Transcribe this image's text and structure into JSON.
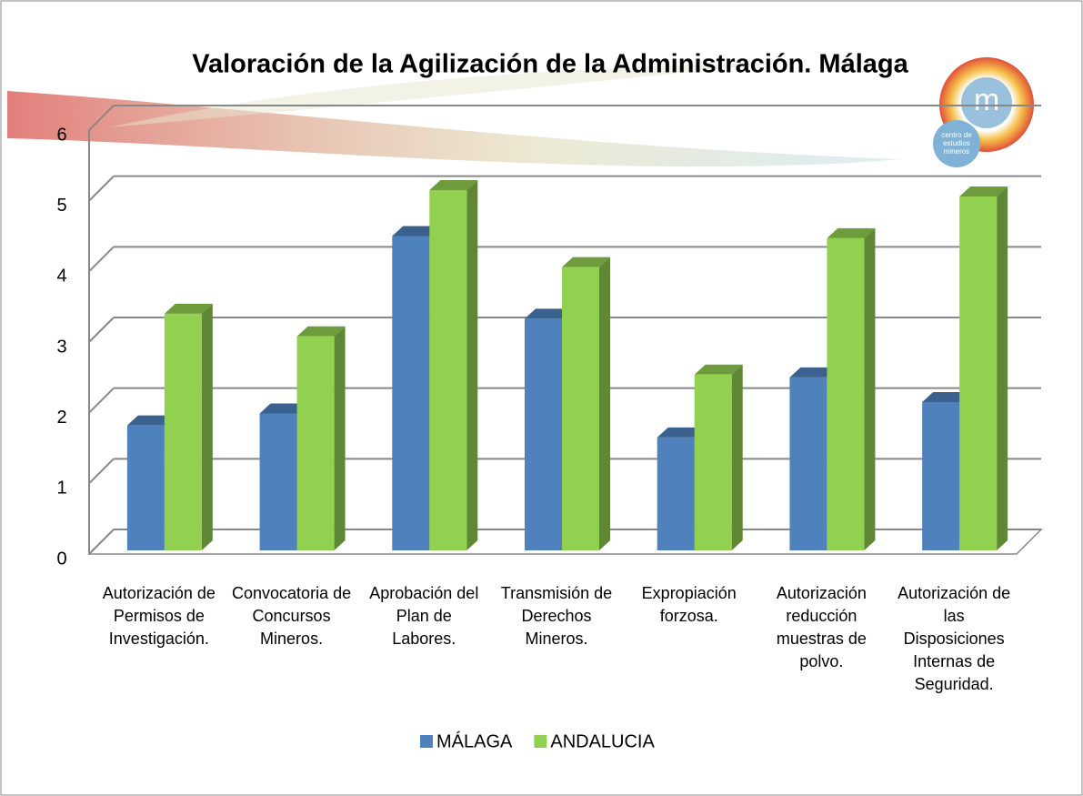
{
  "chart_data": {
    "type": "bar3d",
    "title": "Valoración de la Agilización de la Administración. Málaga",
    "categories": [
      "Autorización de Permisos de Investigación.",
      "Convocatoria de Concursos Mineros.",
      "Aprobación del Plan de Labores.",
      "Transmisión de Derechos Mineros.",
      "Expropiación forzosa.",
      "Autorización reducción muestras de polvo.",
      "Autorización de las Disposiciones Internas de Seguridad."
    ],
    "series": [
      {
        "name": "MÁLAGA",
        "color": "#4f81bd",
        "values": [
          1.82,
          1.99,
          4.5,
          3.33,
          1.65,
          2.5,
          2.15
        ]
      },
      {
        "name": "ANDALUCIA",
        "color": "#92d050",
        "values": [
          3.4,
          3.08,
          5.15,
          4.06,
          2.54,
          4.47,
          5.06
        ]
      }
    ],
    "ylim": [
      0,
      6
    ],
    "yticks": [
      0,
      1,
      2,
      3,
      4,
      5,
      6
    ],
    "grid": true,
    "legend": "bottom"
  },
  "logo": {
    "letter": "m",
    "lines": [
      "centro de",
      "estudios",
      "mineros"
    ]
  }
}
